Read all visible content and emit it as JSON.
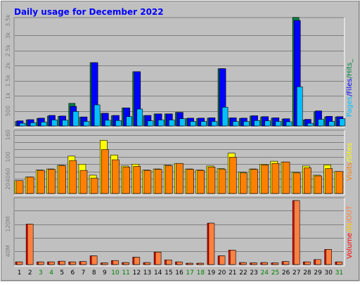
{
  "chart_data": [
    {
      "type": "bar",
      "panel": "pages-files-hits",
      "title": "Daily usage for December 2022",
      "categories": [
        "1",
        "2",
        "3",
        "4",
        "5",
        "6",
        "7",
        "8",
        "9",
        "10",
        "11",
        "12",
        "13",
        "14",
        "15",
        "16",
        "17",
        "18",
        "19",
        "20",
        "21",
        "22",
        "23",
        "24",
        "25",
        "26",
        "27",
        "28",
        "29",
        "30",
        "31"
      ],
      "ylim": [
        0,
        3500
      ],
      "yticks": [
        "500",
        "1k",
        "1.5k",
        "2k",
        "2.5k",
        "3k",
        "3.5k"
      ],
      "grid": true,
      "series": [
        {
          "name": "Pages",
          "values": [
            150,
            200,
            250,
            330,
            320,
            750,
            290,
            2100,
            420,
            340,
            600,
            1800,
            340,
            400,
            400,
            450,
            250,
            250,
            260,
            1900,
            260,
            250,
            330,
            300,
            260,
            230,
            3600,
            200,
            470,
            300,
            300
          ]
        },
        {
          "name": "Files",
          "values": [
            170,
            210,
            260,
            350,
            330,
            650,
            300,
            2100,
            420,
            350,
            600,
            1800,
            350,
            400,
            400,
            450,
            260,
            260,
            270,
            1900,
            270,
            260,
            340,
            310,
            270,
            240,
            3500,
            220,
            500,
            320,
            310
          ]
        },
        {
          "name": "Hits",
          "values": [
            90,
            110,
            130,
            200,
            190,
            480,
            150,
            700,
            190,
            180,
            310,
            560,
            170,
            200,
            200,
            240,
            150,
            150,
            150,
            620,
            150,
            150,
            180,
            170,
            150,
            140,
            1300,
            90,
            220,
            150,
            240
          ]
        }
      ],
      "legend": [
        "Pages",
        "/",
        "Files",
        "/",
        "Hits",
        "_"
      ]
    },
    {
      "type": "bar",
      "panel": "visits-sites",
      "ylim": [
        0,
        165
      ],
      "yticks": [
        "20",
        "40",
        "60",
        "100",
        "160"
      ],
      "grid": true,
      "series": [
        {
          "name": "Visits",
          "values": [
            35,
            45,
            63,
            66,
            76,
            90,
            63,
            42,
            120,
            92,
            72,
            74,
            63,
            66,
            76,
            82,
            66,
            63,
            72,
            66,
            99,
            56,
            66,
            78,
            82,
            86,
            56,
            70,
            48,
            68,
            60
          ]
        },
        {
          "name": "Sites",
          "values": [
            35,
            45,
            64,
            67,
            77,
            102,
            80,
            50,
            145,
            105,
            75,
            80,
            64,
            67,
            77,
            82,
            67,
            64,
            75,
            68,
            110,
            58,
            67,
            80,
            88,
            86,
            58,
            75,
            50,
            78,
            60
          ]
        }
      ],
      "legend": [
        "Visits",
        "/",
        "Sites"
      ]
    },
    {
      "type": "bar",
      "panel": "volume-in-out",
      "ylim": [
        0,
        190
      ],
      "yticks": [
        "40M",
        "120M"
      ],
      "grid": true,
      "series": [
        {
          "name": "Volume",
          "values": [
            8,
            120,
            8,
            8,
            10,
            8,
            9,
            26,
            5,
            12,
            6,
            22,
            6,
            37,
            14,
            8,
            4,
            4,
            123,
            26,
            43,
            6,
            5,
            6,
            5,
            9,
            190,
            8,
            15,
            45,
            8
          ]
        },
        {
          "name": "IN",
          "values": [
            0,
            0,
            0,
            0,
            0,
            0,
            0,
            0,
            0,
            0,
            0,
            0,
            0,
            0,
            0,
            0,
            0,
            0,
            0,
            0,
            0,
            0,
            0,
            0,
            0,
            0,
            0,
            0,
            0,
            0,
            0
          ]
        },
        {
          "name": "OUT",
          "values": [
            8,
            120,
            8,
            8,
            10,
            8,
            9,
            26,
            5,
            12,
            6,
            22,
            6,
            37,
            14,
            8,
            4,
            4,
            123,
            26,
            43,
            6,
            5,
            6,
            5,
            9,
            190,
            8,
            15,
            45,
            8
          ]
        }
      ],
      "legend": [
        "Volume",
        "/",
        "IN",
        "/",
        "OUT"
      ]
    }
  ],
  "day_labels": [
    {
      "label": "1",
      "weekend": false
    },
    {
      "label": "2",
      "weekend": false
    },
    {
      "label": "3",
      "weekend": true
    },
    {
      "label": "4",
      "weekend": true
    },
    {
      "label": "5",
      "weekend": false
    },
    {
      "label": "6",
      "weekend": false
    },
    {
      "label": "7",
      "weekend": false
    },
    {
      "label": "8",
      "weekend": false
    },
    {
      "label": "9",
      "weekend": false
    },
    {
      "label": "10",
      "weekend": true
    },
    {
      "label": "11",
      "weekend": true
    },
    {
      "label": "12",
      "weekend": false
    },
    {
      "label": "13",
      "weekend": false
    },
    {
      "label": "14",
      "weekend": false
    },
    {
      "label": "15",
      "weekend": false
    },
    {
      "label": "16",
      "weekend": false
    },
    {
      "label": "17",
      "weekend": true
    },
    {
      "label": "18",
      "weekend": true
    },
    {
      "label": "19",
      "weekend": false
    },
    {
      "label": "20",
      "weekend": false
    },
    {
      "label": "21",
      "weekend": false
    },
    {
      "label": "22",
      "weekend": false
    },
    {
      "label": "23",
      "weekend": false
    },
    {
      "label": "24",
      "weekend": true
    },
    {
      "label": "25",
      "weekend": true
    },
    {
      "label": "26",
      "weekend": false
    },
    {
      "label": "27",
      "weekend": false
    },
    {
      "label": "28",
      "weekend": false
    },
    {
      "label": "29",
      "weekend": false
    },
    {
      "label": "30",
      "weekend": false
    },
    {
      "label": "31",
      "weekend": true
    }
  ],
  "colors": {
    "frame": "#c0c0c0",
    "title": "#0000ff",
    "pages": "#008040",
    "files": "#0000ff",
    "hits": "#00c0ff",
    "visits": "#ff8000",
    "sites": "#ffff00",
    "volume": "#ff0000",
    "in": "#ffc000",
    "out": "#ff8040",
    "weekend": "#008000",
    "weekday": "#000000"
  }
}
